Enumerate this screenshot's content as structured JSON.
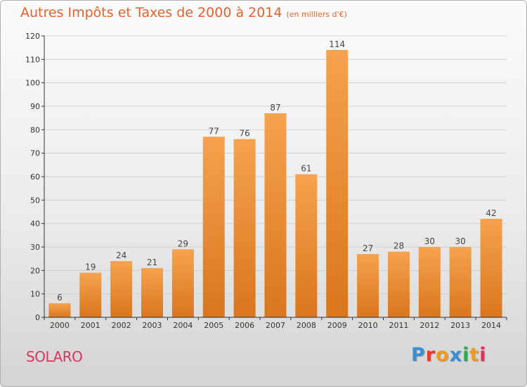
{
  "header": {
    "title": "Autres Impôts et Taxes de 2000 à 2014",
    "unit": "(en milliers d'€)"
  },
  "footer": {
    "commune": "SOLARO",
    "logo_text": "Proxiti",
    "logo_colors": [
      "#3a8fd4",
      "#e8392f",
      "#f29a1b",
      "#3a8fd4",
      "#2fa84f",
      "#f29a1b",
      "#d8365c"
    ]
  },
  "colors": {
    "bar_top": "#f6a24e",
    "bar_bottom": "#d9761e",
    "grid": "#cfcfcf",
    "axis": "#333333",
    "title": "#e4612d"
  },
  "chart_data": {
    "type": "bar",
    "categories": [
      "2000",
      "2001",
      "2002",
      "2003",
      "2004",
      "2005",
      "2006",
      "2007",
      "2008",
      "2009",
      "2010",
      "2011",
      "2012",
      "2013",
      "2014"
    ],
    "values": [
      6,
      19,
      24,
      21,
      29,
      77,
      76,
      87,
      61,
      114,
      27,
      28,
      30,
      30,
      42
    ],
    "data_labels": [
      "6",
      "19",
      "24",
      "21",
      "29",
      "77",
      "76",
      "87",
      "61",
      "114",
      "27",
      "28",
      "30",
      "30",
      "42"
    ],
    "y_ticks": [
      0,
      10,
      20,
      30,
      40,
      50,
      60,
      70,
      80,
      90,
      100,
      110,
      120
    ],
    "ylim": [
      0,
      120
    ],
    "grid": true,
    "legend": "none"
  }
}
